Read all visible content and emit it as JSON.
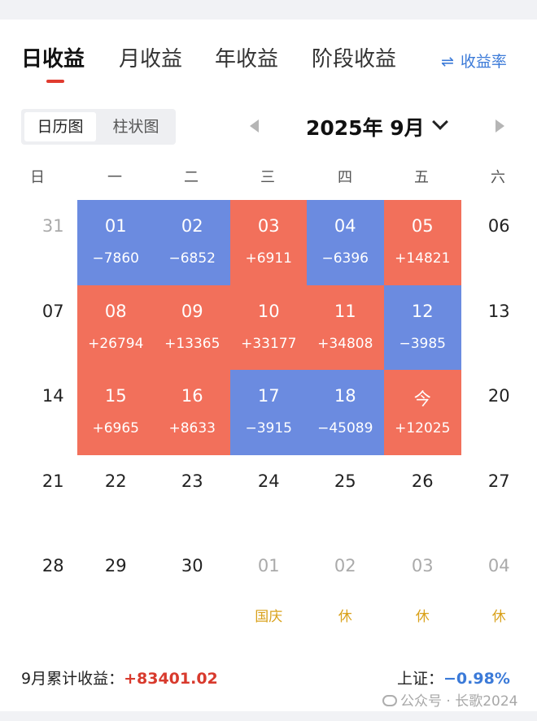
{
  "tabs": [
    {
      "label": "日收益",
      "active": true
    },
    {
      "label": "月收益",
      "active": false
    },
    {
      "label": "年收益",
      "active": false
    },
    {
      "label": "阶段收益",
      "active": false
    }
  ],
  "rate_link": {
    "icon": "swap-arrows-icon",
    "label": "收益率"
  },
  "view_toggle": [
    {
      "label": "日历图",
      "active": true
    },
    {
      "label": "柱状图",
      "active": false
    }
  ],
  "month": {
    "label": "2025年 9月",
    "prev_icon": "triangle-left-icon",
    "next_icon": "triangle-right-icon",
    "dropdown_icon": "chevron-down-icon"
  },
  "weekdays": [
    "日",
    "一",
    "二",
    "三",
    "四",
    "五",
    "六"
  ],
  "colors": {
    "gain": "#f2705b",
    "loss": "#6b8be0",
    "holiday": "#d9a11b",
    "accent": "#e03b2f"
  },
  "weeks": [
    [
      {
        "day": "31",
        "muted": true
      },
      {
        "day": "01",
        "pnl": "−7860",
        "tone": "neg"
      },
      {
        "day": "02",
        "pnl": "−6852",
        "tone": "neg"
      },
      {
        "day": "03",
        "pnl": "+6911",
        "tone": "pos"
      },
      {
        "day": "04",
        "pnl": "−6396",
        "tone": "neg"
      },
      {
        "day": "05",
        "pnl": "+14821",
        "tone": "pos"
      },
      {
        "day": "06"
      }
    ],
    [
      {
        "day": "07"
      },
      {
        "day": "08",
        "pnl": "+26794",
        "tone": "pos"
      },
      {
        "day": "09",
        "pnl": "+13365",
        "tone": "pos"
      },
      {
        "day": "10",
        "pnl": "+33177",
        "tone": "pos"
      },
      {
        "day": "11",
        "pnl": "+34808",
        "tone": "pos"
      },
      {
        "day": "12",
        "pnl": "−3985",
        "tone": "neg"
      },
      {
        "day": "13"
      }
    ],
    [
      {
        "day": "14"
      },
      {
        "day": "15",
        "pnl": "+6965",
        "tone": "pos"
      },
      {
        "day": "16",
        "pnl": "+8633",
        "tone": "pos"
      },
      {
        "day": "17",
        "pnl": "−3915",
        "tone": "neg"
      },
      {
        "day": "18",
        "pnl": "−45089",
        "tone": "neg"
      },
      {
        "day": "今",
        "pnl": "+12025",
        "tone": "pos"
      },
      {
        "day": "20"
      }
    ],
    [
      {
        "day": "21"
      },
      {
        "day": "22"
      },
      {
        "day": "23"
      },
      {
        "day": "24"
      },
      {
        "day": "25"
      },
      {
        "day": "26"
      },
      {
        "day": "27"
      }
    ],
    [
      {
        "day": "28"
      },
      {
        "day": "29"
      },
      {
        "day": "30"
      },
      {
        "day": "01",
        "muted": true,
        "note": "国庆"
      },
      {
        "day": "02",
        "muted": true,
        "note": "休"
      },
      {
        "day": "03",
        "muted": true,
        "note": "休"
      },
      {
        "day": "04",
        "muted": true,
        "note": "休"
      }
    ]
  ],
  "summary": {
    "label": "9月累计收益：",
    "value": "+83401.02"
  },
  "index": {
    "label": "上证：",
    "value": "−0.98%"
  },
  "watermark": "公众号 · 长歌2024"
}
